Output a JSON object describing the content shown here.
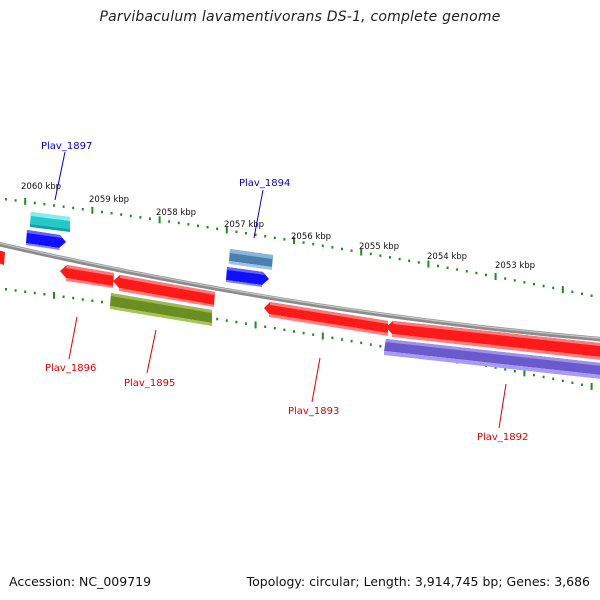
{
  "title": "Parvibaculum lavamentivorans DS-1, complete genome",
  "footer": {
    "accession": "Accession: NC_009719",
    "summary": "Topology: circular; Length: 3,914,745 bp; Genes: 3,686"
  },
  "colors": {
    "backbone": "#8c8c8c",
    "tick": "#1e8c1e",
    "label_forward": "#0000cc",
    "label_reverse": "#dd0000"
  },
  "scale": {
    "labels": [
      "2060 kbp",
      "2059 kbp",
      "2058 kbp",
      "2057 kbp",
      "2056 kbp",
      "2055 kbp",
      "2054 kbp",
      "2053 kbp"
    ]
  },
  "genes": [
    {
      "id": "partial-left",
      "strand": "reverse",
      "color": "#ff1a1a"
    },
    {
      "id": "Plav_1897",
      "label": "Plav_1897",
      "strand": "forward",
      "color": "#2ad6d6"
    },
    {
      "id": "blue-1",
      "strand": "forward",
      "color": "#1010ff"
    },
    {
      "id": "Plav_1896",
      "label": "Plav_1896",
      "strand": "reverse",
      "color": "#ff1a1a"
    },
    {
      "id": "red-2",
      "strand": "reverse",
      "color": "#ff1a1a"
    },
    {
      "id": "Plav_1895",
      "label": "Plav_1895",
      "strand": "reverse",
      "color": "#6b8e23"
    },
    {
      "id": "Plav_1894",
      "label": "Plav_1894",
      "strand": "forward",
      "color": "#4682b4"
    },
    {
      "id": "blue-2",
      "strand": "forward",
      "color": "#1010ff"
    },
    {
      "id": "Plav_1893",
      "label": "Plav_1893",
      "strand": "reverse",
      "color": "#ff1a1a"
    },
    {
      "id": "red-4",
      "strand": "reverse",
      "color": "#ff1a1a"
    },
    {
      "id": "Plav_1892",
      "label": "Plav_1892",
      "strand": "reverse",
      "color": "#7b68ee"
    }
  ]
}
